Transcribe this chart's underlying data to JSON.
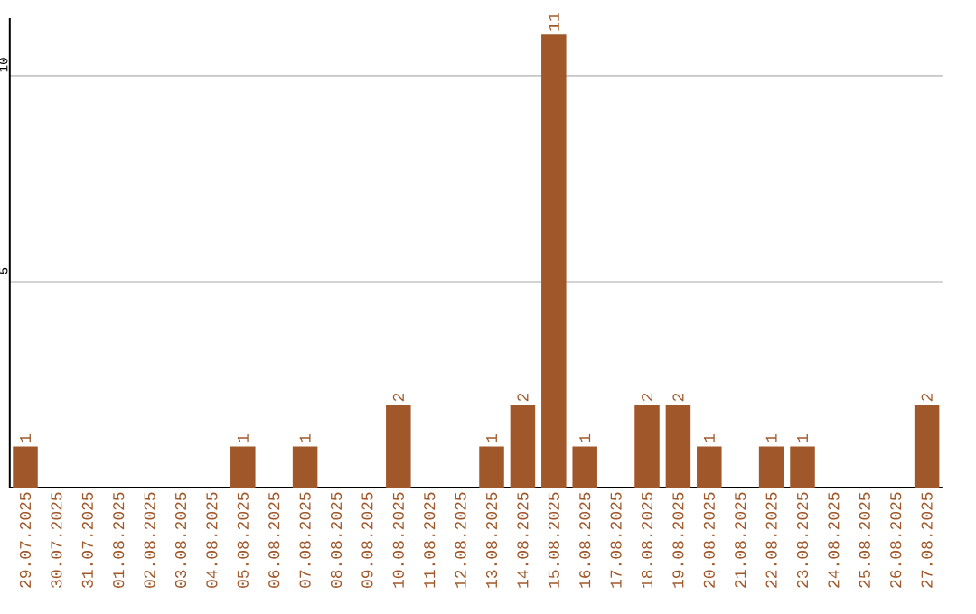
{
  "chart_data": {
    "type": "bar",
    "categories": [
      "29.07.2025",
      "30.07.2025",
      "31.07.2025",
      "01.08.2025",
      "02.08.2025",
      "03.08.2025",
      "04.08.2025",
      "05.08.2025",
      "06.08.2025",
      "07.08.2025",
      "08.08.2025",
      "09.08.2025",
      "10.08.2025",
      "11.08.2025",
      "12.08.2025",
      "13.08.2025",
      "14.08.2025",
      "15.08.2025",
      "16.08.2025",
      "17.08.2025",
      "18.08.2025",
      "19.08.2025",
      "20.08.2025",
      "21.08.2025",
      "22.08.2025",
      "23.08.2025",
      "24.08.2025",
      "25.08.2025",
      "26.08.2025",
      "27.08.2025"
    ],
    "values": [
      1,
      0,
      0,
      0,
      0,
      0,
      0,
      1,
      0,
      1,
      0,
      0,
      2,
      0,
      0,
      1,
      2,
      11,
      1,
      0,
      2,
      2,
      1,
      0,
      1,
      1,
      0,
      0,
      0,
      2
    ],
    "value_labels": [
      "1",
      null,
      null,
      null,
      null,
      null,
      null,
      "1",
      null,
      "1",
      null,
      null,
      "2",
      null,
      null,
      "1",
      "2",
      "11",
      "1",
      null,
      "2",
      "2",
      "1",
      null,
      "1",
      "1",
      null,
      null,
      null,
      "2"
    ],
    "color": "#a0582a",
    "ylim": [
      0,
      11.4
    ],
    "yticks": [
      5,
      10
    ],
    "grid": "y"
  }
}
